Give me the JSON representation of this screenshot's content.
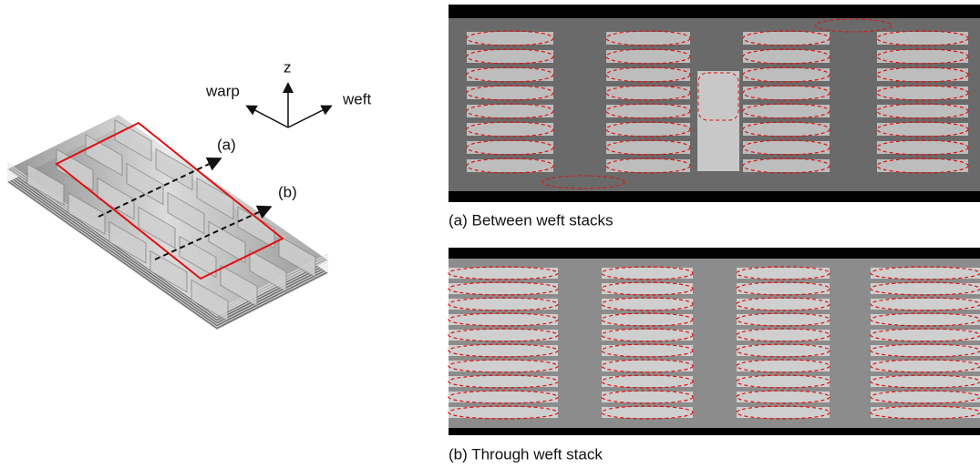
{
  "axes_labels": {
    "z": "z",
    "warp": "warp",
    "weft": "weft"
  },
  "model_labels": {
    "a": "(a)",
    "b": "(b)"
  },
  "panels": [
    {
      "caption": "(a) Between weft stacks"
    },
    {
      "caption": "(b) Through weft stack"
    }
  ]
}
